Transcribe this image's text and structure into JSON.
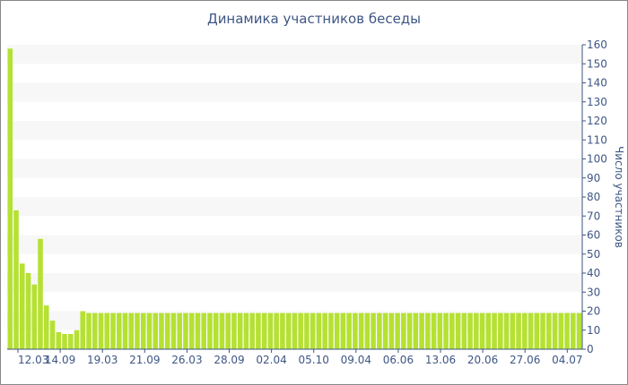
{
  "chart_data": {
    "type": "bar",
    "title": "Динамика участников беседы",
    "xlabel": "",
    "ylabel": "Число участников",
    "ylim": [
      0,
      160
    ],
    "yticks": [
      0,
      10,
      20,
      30,
      40,
      50,
      60,
      70,
      80,
      90,
      100,
      110,
      120,
      130,
      140,
      150,
      160
    ],
    "y_axis_position": "right",
    "grid": "alternating horizontal bands",
    "bar_color": "#b5e132",
    "xtick_labels": [
      "12.03",
      "14.09",
      "19.03",
      "21.09",
      "26.03",
      "28.09",
      "02.04",
      "05.10",
      "09.04",
      "06.06",
      "13.06",
      "20.06",
      "27.06",
      "04.07"
    ],
    "values": [
      158,
      73,
      45,
      40,
      34,
      58,
      23,
      15,
      9,
      8,
      8,
      10,
      20,
      19,
      19,
      19,
      19,
      19,
      19,
      19,
      19,
      19,
      19,
      19,
      19,
      19,
      19,
      19,
      19,
      19,
      19,
      19,
      19,
      19,
      19,
      19,
      19,
      19,
      19,
      19,
      19,
      19,
      19,
      19,
      19,
      19,
      19,
      19,
      19,
      19,
      19,
      19,
      19,
      19,
      19,
      19,
      19,
      19,
      19,
      19,
      19,
      19,
      19,
      19,
      19,
      19,
      19,
      19,
      19,
      19,
      19,
      19,
      19,
      19,
      19,
      19,
      19,
      19,
      19,
      19,
      19,
      19,
      19,
      19,
      19,
      19,
      19,
      19,
      19,
      19,
      19,
      19,
      19,
      19,
      19
    ]
  }
}
